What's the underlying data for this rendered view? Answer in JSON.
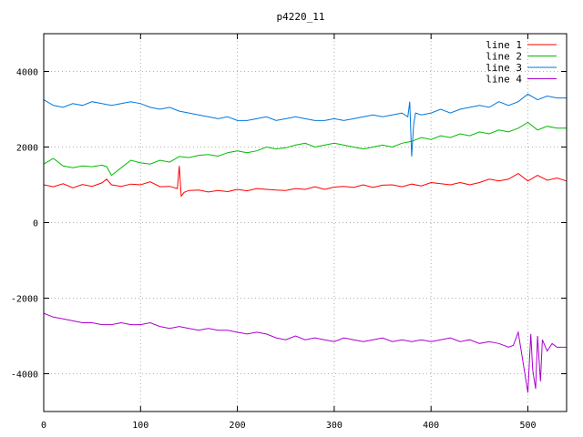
{
  "chart_data": {
    "type": "line",
    "title": "p4220_11",
    "xlabel": "",
    "ylabel": "",
    "xlim": [
      0,
      540
    ],
    "ylim": [
      -5000,
      5000
    ],
    "x_ticks": [
      0,
      100,
      200,
      300,
      400,
      500
    ],
    "y_ticks": [
      -4000,
      -2000,
      0,
      2000,
      4000
    ],
    "grid": true,
    "legend_position": "top-right",
    "series": [
      {
        "name": "line 1",
        "color": "#ff0000",
        "x": [
          0,
          10,
          20,
          30,
          40,
          50,
          60,
          65,
          70,
          80,
          90,
          100,
          110,
          120,
          130,
          138,
          140,
          142,
          145,
          150,
          160,
          170,
          180,
          190,
          200,
          210,
          220,
          230,
          240,
          250,
          260,
          270,
          280,
          290,
          300,
          310,
          320,
          330,
          340,
          350,
          360,
          370,
          380,
          390,
          400,
          410,
          420,
          430,
          440,
          450,
          460,
          470,
          480,
          490,
          500,
          510,
          520,
          530,
          540
        ],
        "values": [
          1000,
          950,
          1030,
          920,
          1010,
          960,
          1050,
          1150,
          1000,
          960,
          1020,
          1000,
          1080,
          950,
          960,
          900,
          1500,
          700,
          800,
          850,
          860,
          810,
          850,
          820,
          880,
          840,
          900,
          880,
          860,
          850,
          900,
          880,
          950,
          880,
          940,
          960,
          930,
          1000,
          930,
          990,
          1000,
          950,
          1020,
          970,
          1060,
          1030,
          1000,
          1060,
          1000,
          1060,
          1150,
          1100,
          1150,
          1300,
          1100,
          1250,
          1120,
          1180,
          1100
        ]
      },
      {
        "name": "line 2",
        "color": "#00bb00",
        "x": [
          0,
          10,
          20,
          30,
          40,
          50,
          60,
          65,
          70,
          80,
          90,
          100,
          110,
          120,
          130,
          140,
          150,
          160,
          170,
          180,
          190,
          200,
          210,
          220,
          230,
          240,
          250,
          260,
          270,
          280,
          290,
          300,
          310,
          320,
          330,
          340,
          350,
          360,
          370,
          380,
          390,
          400,
          410,
          420,
          430,
          440,
          450,
          460,
          470,
          480,
          490,
          500,
          510,
          520,
          530,
          540
        ],
        "values": [
          1550,
          1700,
          1500,
          1450,
          1500,
          1480,
          1520,
          1480,
          1250,
          1450,
          1650,
          1580,
          1550,
          1650,
          1600,
          1750,
          1720,
          1780,
          1800,
          1760,
          1850,
          1900,
          1850,
          1900,
          2000,
          1950,
          1980,
          2050,
          2100,
          2000,
          2050,
          2100,
          2050,
          2000,
          1950,
          2000,
          2050,
          2000,
          2100,
          2150,
          2250,
          2200,
          2300,
          2250,
          2350,
          2300,
          2400,
          2350,
          2450,
          2400,
          2500,
          2650,
          2450,
          2550,
          2500,
          2500
        ]
      },
      {
        "name": "line 3",
        "color": "#0077dd",
        "x": [
          0,
          10,
          20,
          30,
          40,
          50,
          60,
          70,
          80,
          90,
          100,
          110,
          120,
          130,
          140,
          150,
          160,
          170,
          180,
          190,
          200,
          210,
          220,
          230,
          240,
          250,
          260,
          270,
          280,
          290,
          300,
          310,
          320,
          330,
          340,
          350,
          360,
          370,
          376,
          378,
          380,
          382,
          384,
          390,
          400,
          410,
          420,
          430,
          440,
          450,
          460,
          470,
          480,
          490,
          500,
          510,
          520,
          530,
          540
        ],
        "values": [
          3250,
          3100,
          3050,
          3150,
          3100,
          3200,
          3150,
          3100,
          3150,
          3200,
          3150,
          3050,
          3000,
          3050,
          2950,
          2900,
          2850,
          2800,
          2750,
          2800,
          2700,
          2700,
          2750,
          2800,
          2700,
          2750,
          2800,
          2750,
          2700,
          2700,
          2750,
          2700,
          2750,
          2800,
          2850,
          2800,
          2850,
          2900,
          2800,
          3200,
          1750,
          2600,
          2900,
          2850,
          2900,
          3000,
          2900,
          3000,
          3050,
          3100,
          3050,
          3200,
          3100,
          3200,
          3400,
          3250,
          3350,
          3300,
          3300
        ]
      },
      {
        "name": "line 4",
        "color": "#aa00cc",
        "x": [
          0,
          10,
          20,
          30,
          40,
          50,
          60,
          70,
          80,
          90,
          100,
          110,
          120,
          130,
          140,
          150,
          160,
          170,
          180,
          190,
          200,
          210,
          220,
          230,
          240,
          250,
          260,
          270,
          280,
          290,
          300,
          310,
          320,
          330,
          340,
          350,
          360,
          370,
          380,
          390,
          400,
          410,
          420,
          430,
          440,
          450,
          460,
          470,
          480,
          485,
          490,
          495,
          500,
          503,
          505,
          508,
          510,
          513,
          515,
          520,
          525,
          530,
          540
        ],
        "values": [
          -2400,
          -2500,
          -2550,
          -2600,
          -2650,
          -2650,
          -2700,
          -2700,
          -2650,
          -2700,
          -2700,
          -2650,
          -2750,
          -2800,
          -2750,
          -2800,
          -2850,
          -2800,
          -2850,
          -2850,
          -2900,
          -2950,
          -2900,
          -2950,
          -3050,
          -3100,
          -3000,
          -3100,
          -3050,
          -3100,
          -3150,
          -3050,
          -3100,
          -3150,
          -3100,
          -3050,
          -3150,
          -3100,
          -3150,
          -3100,
          -3150,
          -3100,
          -3050,
          -3150,
          -3100,
          -3200,
          -3150,
          -3200,
          -3300,
          -3250,
          -2900,
          -3700,
          -4500,
          -2950,
          -3900,
          -4400,
          -3000,
          -4200,
          -3100,
          -3400,
          -3200,
          -3300,
          -3300
        ]
      }
    ]
  }
}
